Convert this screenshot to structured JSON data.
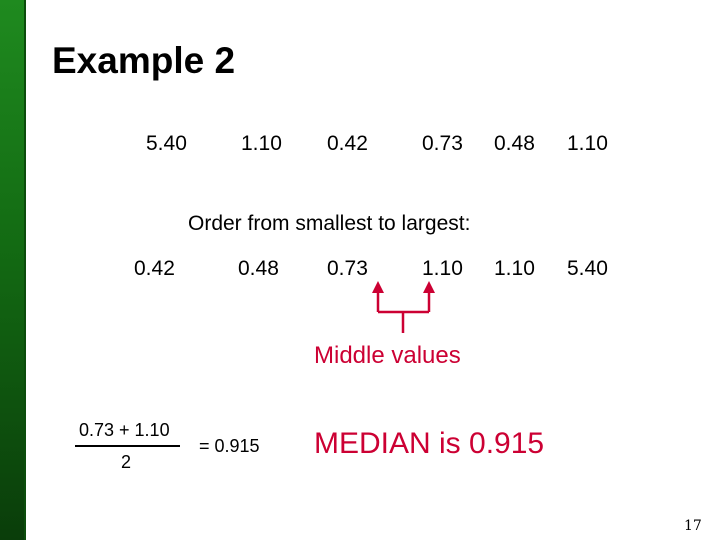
{
  "slide": {
    "title": "Example 2",
    "page_number": "17"
  },
  "unordered_values": [
    "5.40",
    "1.10",
    "0.42",
    "0.73",
    "0.48",
    "1.10"
  ],
  "order_instruction": "Order from smallest to largest:",
  "ordered_values": [
    "0.42",
    "0.48",
    "0.73",
    "1.10",
    "1.10",
    "5.40"
  ],
  "middle_label": "Middle values",
  "calculation": {
    "numerator": "0.73 + 1.10",
    "denominator": "2",
    "result": "= 0.915"
  },
  "median_statement": "MEDIAN is 0.915",
  "colors": {
    "accent_red": "#cc0033",
    "sidebar_green": "#136b13"
  }
}
